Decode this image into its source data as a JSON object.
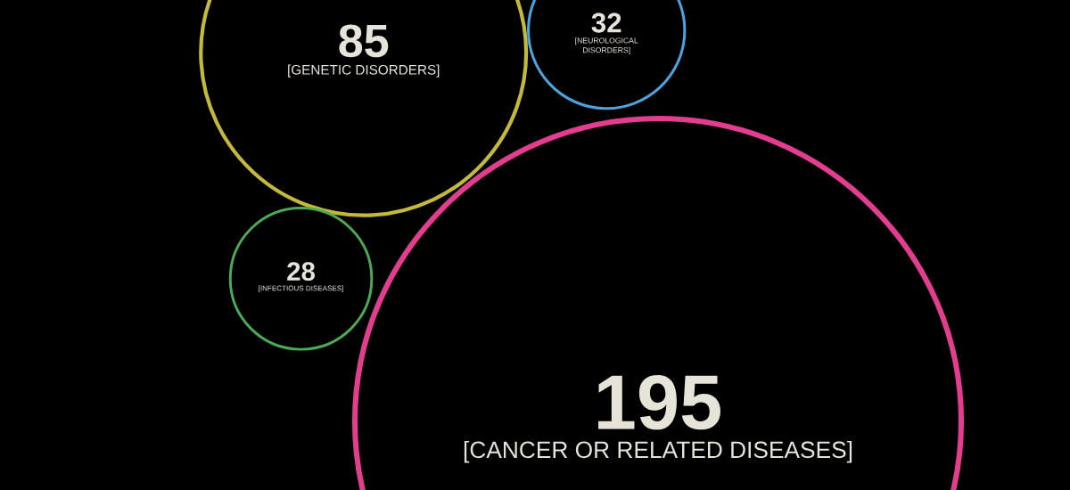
{
  "chart_data": {
    "type": "other",
    "categories": [
      "[GENETIC DISORDERS]",
      "[NEUROLOGICAL DISORDERS]",
      "[INFECTIOUS DISEASES]",
      "[CANCER OR RELATED DISEASES]"
    ],
    "values": [
      85,
      32,
      28,
      195
    ],
    "colors": [
      "#c4b93a",
      "#4fa3dc",
      "#4caa55",
      "#e23d8f"
    ],
    "data_labels": true
  }
}
